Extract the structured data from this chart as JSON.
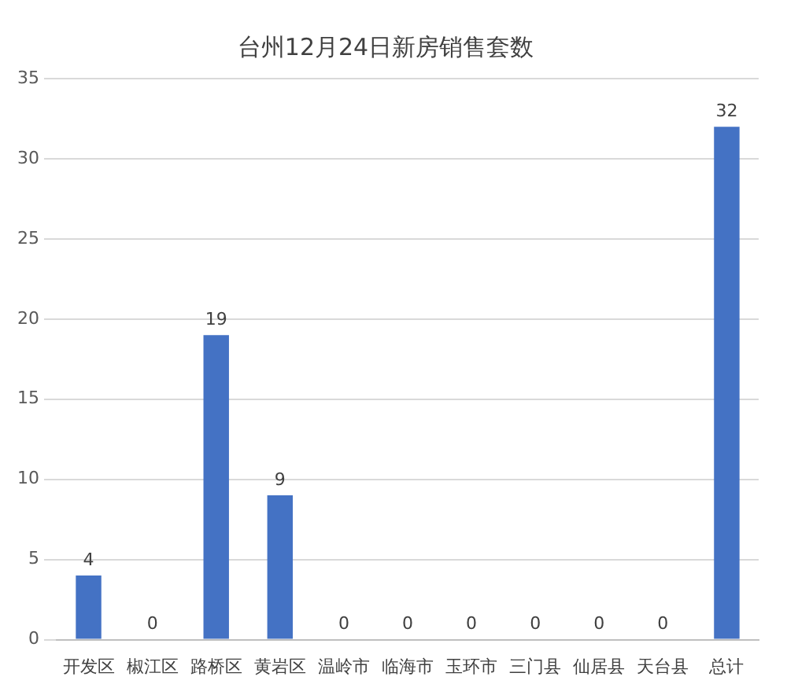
{
  "chart_data": {
    "type": "bar",
    "title": "台州12月24日新房销售套数",
    "categories": [
      "开发区",
      "椒江区",
      "路桥区",
      "黄岩区",
      "温岭市",
      "临海市",
      "玉环市",
      "三门县",
      "仙居县",
      "天台县",
      "总计"
    ],
    "values": [
      4,
      0,
      19,
      9,
      0,
      0,
      0,
      0,
      0,
      0,
      32
    ],
    "color": "#4472c4",
    "ylim": [
      0,
      35
    ],
    "yticks": [
      0,
      5,
      10,
      15,
      20,
      25,
      30,
      35
    ],
    "grid": "y",
    "data_labels": true
  }
}
